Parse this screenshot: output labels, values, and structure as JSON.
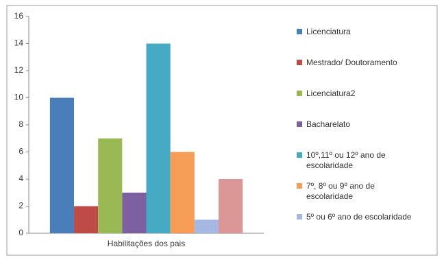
{
  "chart_data": {
    "type": "bar",
    "categories": [
      "Habilitações dos pais"
    ],
    "series": [
      {
        "name": "Licenciatura",
        "color": "#4a7ebb",
        "values": [
          10
        ]
      },
      {
        "name": "Mestrado/ Doutoramento",
        "color": "#be4b48",
        "values": [
          2
        ]
      },
      {
        "name": "Licenciatura2",
        "color": "#98b954",
        "values": [
          7
        ]
      },
      {
        "name": "Bacharelato",
        "color": "#7d60a0",
        "values": [
          3
        ]
      },
      {
        "name": "10º,11º ou 12º ano de escolaridade",
        "color": "#46aac5",
        "values": [
          14
        ]
      },
      {
        "name": "7º, 8º ou 9º ano de escolaridade",
        "color": "#f59d56",
        "values": [
          6
        ]
      },
      {
        "name": "5º ou 6º ano de escolaridade",
        "color": "#a5b8e2",
        "values": [
          1
        ]
      },
      {
        "color": "#d99694",
        "values": [
          4
        ]
      }
    ],
    "ylim": [
      0,
      16
    ],
    "yticks": [
      0,
      2,
      4,
      6,
      8,
      10,
      12,
      14,
      16
    ],
    "grid": false
  }
}
